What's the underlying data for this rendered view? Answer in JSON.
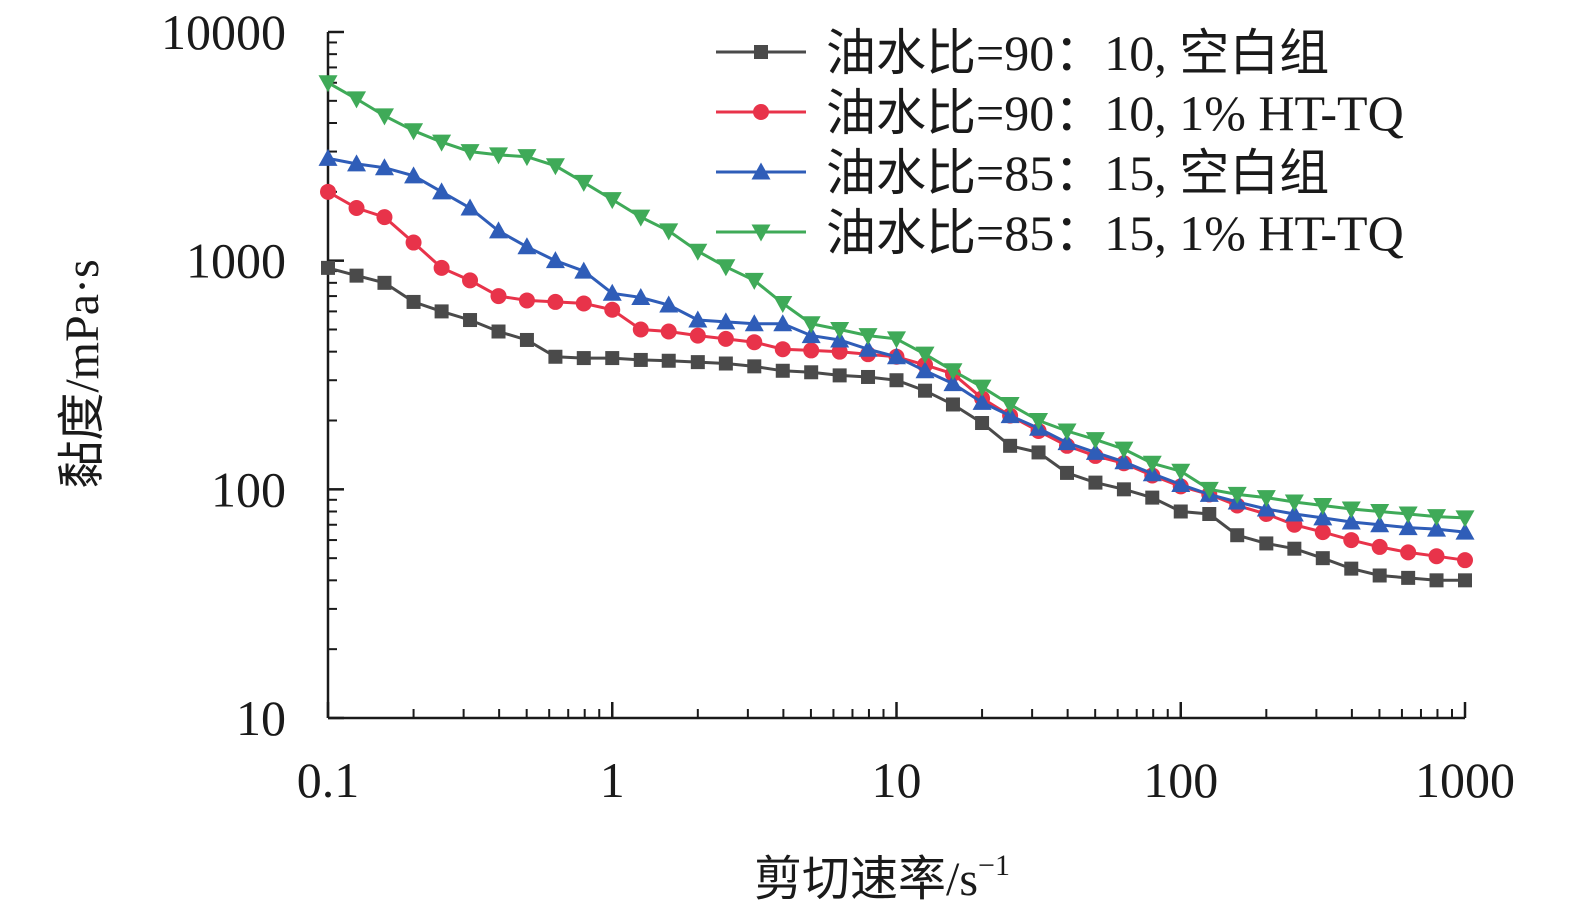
{
  "chart_data": {
    "type": "line",
    "xscale": "log",
    "yscale": "log",
    "xlim": [
      0.1,
      1000
    ],
    "ylim": [
      10,
      10000
    ],
    "xlabel": "剪切速率/s",
    "xlabel_sup": "−1",
    "ylabel": "黏度/mPa·s",
    "x_ticks": [
      "0.1",
      "1",
      "10",
      "100",
      "1000"
    ],
    "y_ticks": [
      "10",
      "100",
      "1000",
      "10000"
    ],
    "grid": false,
    "legend_position": "top-right",
    "x": [
      0.1,
      0.126,
      0.158,
      0.2,
      0.251,
      0.316,
      0.398,
      0.501,
      0.631,
      0.794,
      1.0,
      1.26,
      1.58,
      2.0,
      2.51,
      3.16,
      3.98,
      5.01,
      6.31,
      7.94,
      10.0,
      12.6,
      15.8,
      20.0,
      25.1,
      31.6,
      39.8,
      50.1,
      63.1,
      79.4,
      100,
      126,
      158,
      200,
      251,
      316,
      398,
      501,
      631,
      794,
      1000
    ],
    "series": [
      {
        "name": "油水比=90：10, 空白组",
        "color": "#4a4a4a",
        "marker": "square",
        "values": [
          930,
          860,
          800,
          660,
          600,
          550,
          490,
          450,
          380,
          375,
          375,
          368,
          365,
          360,
          355,
          345,
          330,
          325,
          315,
          310,
          300,
          270,
          235,
          195,
          155,
          145,
          118,
          107,
          100,
          92,
          80,
          78,
          63,
          58,
          55,
          50,
          45,
          42,
          41,
          40,
          40
        ]
      },
      {
        "name": "油水比=90：10, 1% HT-TQ",
        "color": "#e8334a",
        "marker": "circle",
        "values": [
          2000,
          1700,
          1550,
          1200,
          930,
          820,
          700,
          670,
          660,
          650,
          610,
          500,
          490,
          470,
          455,
          440,
          410,
          405,
          400,
          390,
          380,
          350,
          320,
          250,
          210,
          180,
          155,
          140,
          130,
          115,
          103,
          95,
          85,
          78,
          70,
          65,
          60,
          56,
          53,
          51,
          49
        ]
      },
      {
        "name": "油水比=85：15, 空白组",
        "color": "#2f5db8",
        "marker": "triangle-up",
        "values": [
          2800,
          2650,
          2550,
          2350,
          2000,
          1700,
          1350,
          1150,
          1000,
          900,
          720,
          690,
          640,
          550,
          540,
          530,
          530,
          470,
          450,
          410,
          380,
          330,
          290,
          240,
          210,
          185,
          160,
          145,
          132,
          117,
          105,
          95,
          88,
          82,
          78,
          75,
          72,
          70,
          68,
          67,
          65
        ]
      },
      {
        "name": "油水比=85：15, 1% HT-TQ",
        "color": "#3faa58",
        "marker": "triangle-down",
        "values": [
          6000,
          5100,
          4300,
          3700,
          3300,
          3000,
          2900,
          2850,
          2600,
          2200,
          1850,
          1550,
          1350,
          1100,
          940,
          820,
          650,
          530,
          500,
          470,
          455,
          390,
          330,
          280,
          235,
          200,
          180,
          165,
          150,
          130,
          120,
          100,
          95,
          92,
          88,
          85,
          82,
          80,
          78,
          76,
          75
        ]
      }
    ]
  }
}
